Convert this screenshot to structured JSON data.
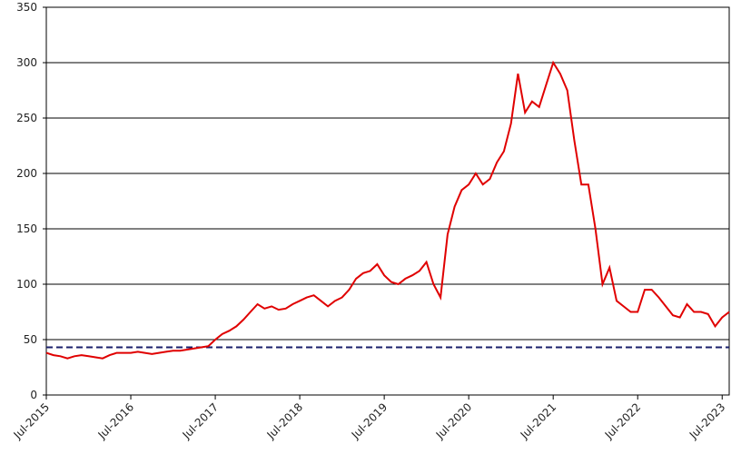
{
  "chart_data": {
    "type": "line",
    "x": [
      "2015-07",
      "2015-08",
      "2015-09",
      "2015-10",
      "2015-11",
      "2015-12",
      "2016-01",
      "2016-02",
      "2016-03",
      "2016-04",
      "2016-05",
      "2016-06",
      "2016-07",
      "2016-08",
      "2016-09",
      "2016-10",
      "2016-11",
      "2016-12",
      "2017-01",
      "2017-02",
      "2017-03",
      "2017-04",
      "2017-05",
      "2017-06",
      "2017-07",
      "2017-08",
      "2017-09",
      "2017-10",
      "2017-11",
      "2017-12",
      "2018-01",
      "2018-02",
      "2018-03",
      "2018-04",
      "2018-05",
      "2018-06",
      "2018-07",
      "2018-08",
      "2018-09",
      "2018-10",
      "2018-11",
      "2018-12",
      "2019-01",
      "2019-02",
      "2019-03",
      "2019-04",
      "2019-05",
      "2019-06",
      "2019-07",
      "2019-08",
      "2019-09",
      "2019-10",
      "2019-11",
      "2019-12",
      "2020-01",
      "2020-02",
      "2020-03",
      "2020-04",
      "2020-05",
      "2020-06",
      "2020-07",
      "2020-08",
      "2020-09",
      "2020-10",
      "2020-11",
      "2020-12",
      "2021-01",
      "2021-02",
      "2021-03",
      "2021-04",
      "2021-05",
      "2021-06",
      "2021-07",
      "2021-08",
      "2021-09",
      "2021-10",
      "2021-11",
      "2021-12",
      "2022-01",
      "2022-02",
      "2022-03",
      "2022-04",
      "2022-05",
      "2022-06",
      "2022-07",
      "2022-08",
      "2022-09",
      "2022-10",
      "2022-11",
      "2022-12",
      "2023-01",
      "2023-02",
      "2023-03",
      "2023-04",
      "2023-05",
      "2023-06",
      "2023-07",
      "2023-08"
    ],
    "series": [
      {
        "color": "#e00000",
        "values": [
          38,
          36,
          35,
          33,
          35,
          36,
          35,
          34,
          33,
          36,
          38,
          38,
          38,
          39,
          38,
          37,
          38,
          39,
          40,
          40,
          41,
          42,
          43,
          44,
          50,
          55,
          58,
          62,
          68,
          75,
          82,
          78,
          80,
          77,
          78,
          82,
          85,
          88,
          90,
          85,
          80,
          85,
          88,
          95,
          105,
          110,
          112,
          118,
          108,
          102,
          100,
          105,
          108,
          112,
          120,
          100,
          88,
          145,
          170,
          185,
          190,
          200,
          190,
          195,
          210,
          220,
          245,
          290,
          255,
          265,
          260,
          280,
          300,
          290,
          275,
          230,
          190,
          190,
          150,
          100,
          115,
          85,
          80,
          75,
          75,
          95,
          95,
          88,
          80,
          72,
          70,
          82,
          75,
          75,
          73,
          62,
          70,
          75
        ]
      }
    ],
    "reference_line": {
      "value": 43,
      "color": "#1a1f6b",
      "dashed": true
    },
    "xlim": [
      "2015-07",
      "2023-08"
    ],
    "xticks": [
      {
        "value": "2015-07",
        "label": "Jul-2015"
      },
      {
        "value": "2016-07",
        "label": "Jul-2016"
      },
      {
        "value": "2017-07",
        "label": "Jul-2017"
      },
      {
        "value": "2018-07",
        "label": "Jul-2018"
      },
      {
        "value": "2019-07",
        "label": "Jul-2019"
      },
      {
        "value": "2020-07",
        "label": "Jul-2020"
      },
      {
        "value": "2021-07",
        "label": "Jul-2021"
      },
      {
        "value": "2022-07",
        "label": "Jul-2022"
      },
      {
        "value": "2023-07",
        "label": "Jul-2023"
      }
    ],
    "ylim": [
      0,
      350
    ],
    "yticks": [
      0,
      50,
      100,
      150,
      200,
      250,
      300,
      350
    ],
    "grid": true
  }
}
